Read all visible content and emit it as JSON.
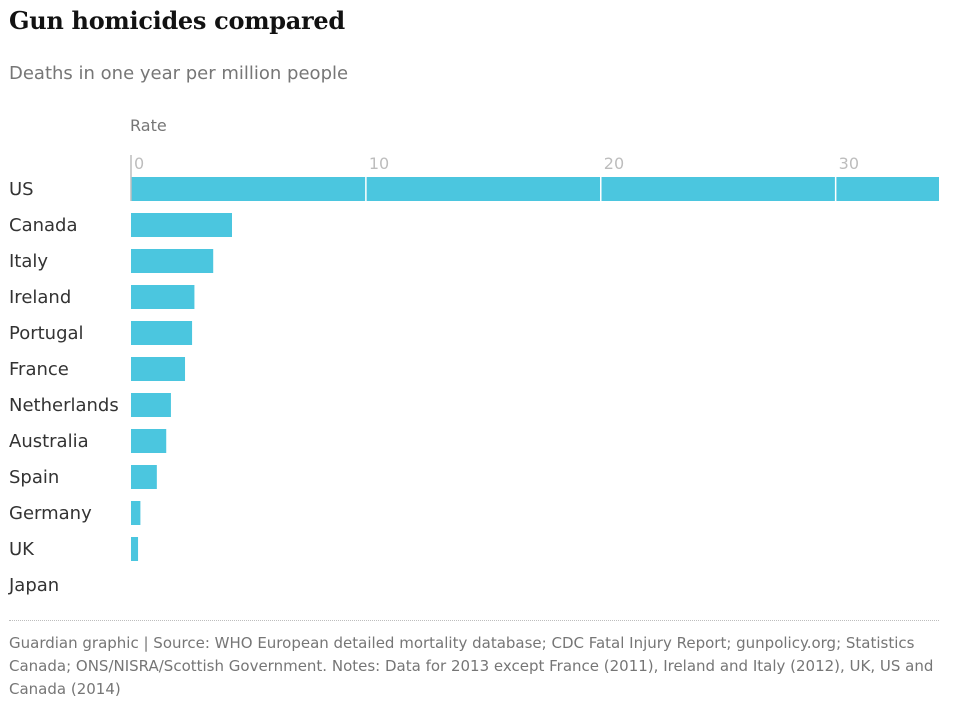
{
  "header": {
    "title": "Gun homicides compared",
    "subtitle": "Deaths in one year per million people"
  },
  "footer": {
    "source": "Guardian graphic | Source: WHO European detailed mortality database; CDC Fatal Injury Report; gunpolicy.org; Statistics Canada; ONS/NISRA/Scottish Government. Notes: Data for 2013 except France (2011), Ireland and Italy (2012), UK, US and Canada (2014)"
  },
  "colors": {
    "bar": "#4bc6df",
    "tick_text": "#bdbdbd",
    "label_text": "#333333"
  },
  "chart_data": {
    "type": "bar",
    "orientation": "horizontal",
    "title": "Gun homicides compared",
    "subtitle": "Deaths in one year per million people",
    "xlabel": "Rate",
    "categories": [
      "US",
      "Canada",
      "Italy",
      "Ireland",
      "Portugal",
      "France",
      "Netherlands",
      "Australia",
      "Spain",
      "Germany",
      "UK",
      "Japan"
    ],
    "values": [
      34.4,
      4.3,
      3.5,
      2.7,
      2.6,
      2.3,
      1.7,
      1.5,
      1.1,
      0.4,
      0.3,
      0.0
    ],
    "xticks": [
      0,
      10,
      20,
      30
    ],
    "xlim": [
      0,
      34.4
    ],
    "grid": false,
    "legend": "none"
  }
}
